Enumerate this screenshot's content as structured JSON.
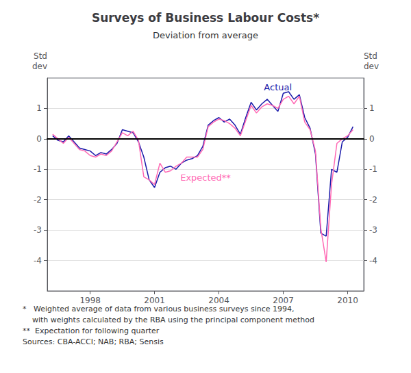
{
  "chart_data": {
    "type": "line",
    "title": "Surveys of Business Labour Costs*",
    "subtitle": "Deviation from average",
    "ylabel": "Std\ndev",
    "y2label": "Std\ndev",
    "footnotes": [
      "*   Weighted average of data from various business surveys since 1994,",
      "    with weights calculated by the RBA using the principal component method",
      "**  Expectation for following quarter",
      "Sources: CBA-ACCI; NAB; RBA; Sensis"
    ],
    "x": [
      1996.25,
      1996.5,
      1996.75,
      1997.0,
      1997.25,
      1997.5,
      1997.75,
      1998.0,
      1998.25,
      1998.5,
      1998.75,
      1999.0,
      1999.25,
      1999.5,
      1999.75,
      2000.0,
      2000.25,
      2000.5,
      2000.75,
      2001.0,
      2001.25,
      2001.5,
      2001.75,
      2002.0,
      2002.25,
      2002.5,
      2002.75,
      2003.0,
      2003.25,
      2003.5,
      2003.75,
      2004.0,
      2004.25,
      2004.5,
      2004.75,
      2005.0,
      2005.25,
      2005.5,
      2005.75,
      2006.0,
      2006.25,
      2006.5,
      2006.75,
      2007.0,
      2007.25,
      2007.5,
      2007.75,
      2008.0,
      2008.25,
      2008.5,
      2008.75,
      2009.0,
      2009.25,
      2009.5,
      2009.75,
      2010.0,
      2010.25
    ],
    "series": [
      {
        "name": "Actual",
        "color": "#1a1aaa",
        "values": [
          0.1,
          -0.05,
          -0.1,
          0.1,
          -0.1,
          -0.3,
          -0.35,
          -0.4,
          -0.55,
          -0.45,
          -0.5,
          -0.35,
          -0.15,
          0.3,
          0.25,
          0.2,
          -0.1,
          -0.6,
          -1.35,
          -1.6,
          -1.1,
          -0.95,
          -0.9,
          -1.0,
          -0.8,
          -0.7,
          -0.65,
          -0.55,
          -0.25,
          0.45,
          0.6,
          0.7,
          0.55,
          0.65,
          0.45,
          0.15,
          0.7,
          1.2,
          0.95,
          1.15,
          1.3,
          1.1,
          0.9,
          1.5,
          1.55,
          1.3,
          1.45,
          0.7,
          0.35,
          -0.5,
          -3.1,
          -3.2,
          -1.0,
          -1.1,
          -0.1,
          0.05,
          0.4
        ]
      },
      {
        "name": "Expected**",
        "color": "#ff69b4",
        "values": [
          0.15,
          0.0,
          -0.15,
          0.05,
          -0.15,
          -0.35,
          -0.4,
          -0.55,
          -0.6,
          -0.5,
          -0.55,
          -0.4,
          -0.1,
          0.2,
          0.1,
          0.25,
          -0.05,
          -1.25,
          -1.35,
          -1.5,
          -0.8,
          -1.1,
          -1.05,
          -0.9,
          -0.8,
          -0.6,
          -0.6,
          -0.6,
          -0.35,
          0.4,
          0.55,
          0.65,
          0.6,
          0.5,
          0.35,
          0.1,
          0.6,
          1.1,
          0.85,
          1.05,
          1.15,
          1.1,
          1.0,
          1.3,
          1.4,
          1.15,
          1.4,
          0.55,
          0.3,
          -0.4,
          -2.95,
          -4.05,
          -1.5,
          -0.15,
          0.0,
          0.1,
          0.3
        ]
      }
    ],
    "xlim": [
      1996.0,
      2010.75
    ],
    "xticks": [
      1998,
      2001,
      2004,
      2007,
      2010
    ],
    "ylim": [
      -5,
      2
    ],
    "yticks": [
      -4,
      -3,
      -2,
      -1,
      0,
      1
    ],
    "y2lim": [
      -5,
      2
    ],
    "y2ticks": [
      -4,
      -3,
      -2,
      -1,
      0,
      1
    ],
    "grid": true
  }
}
